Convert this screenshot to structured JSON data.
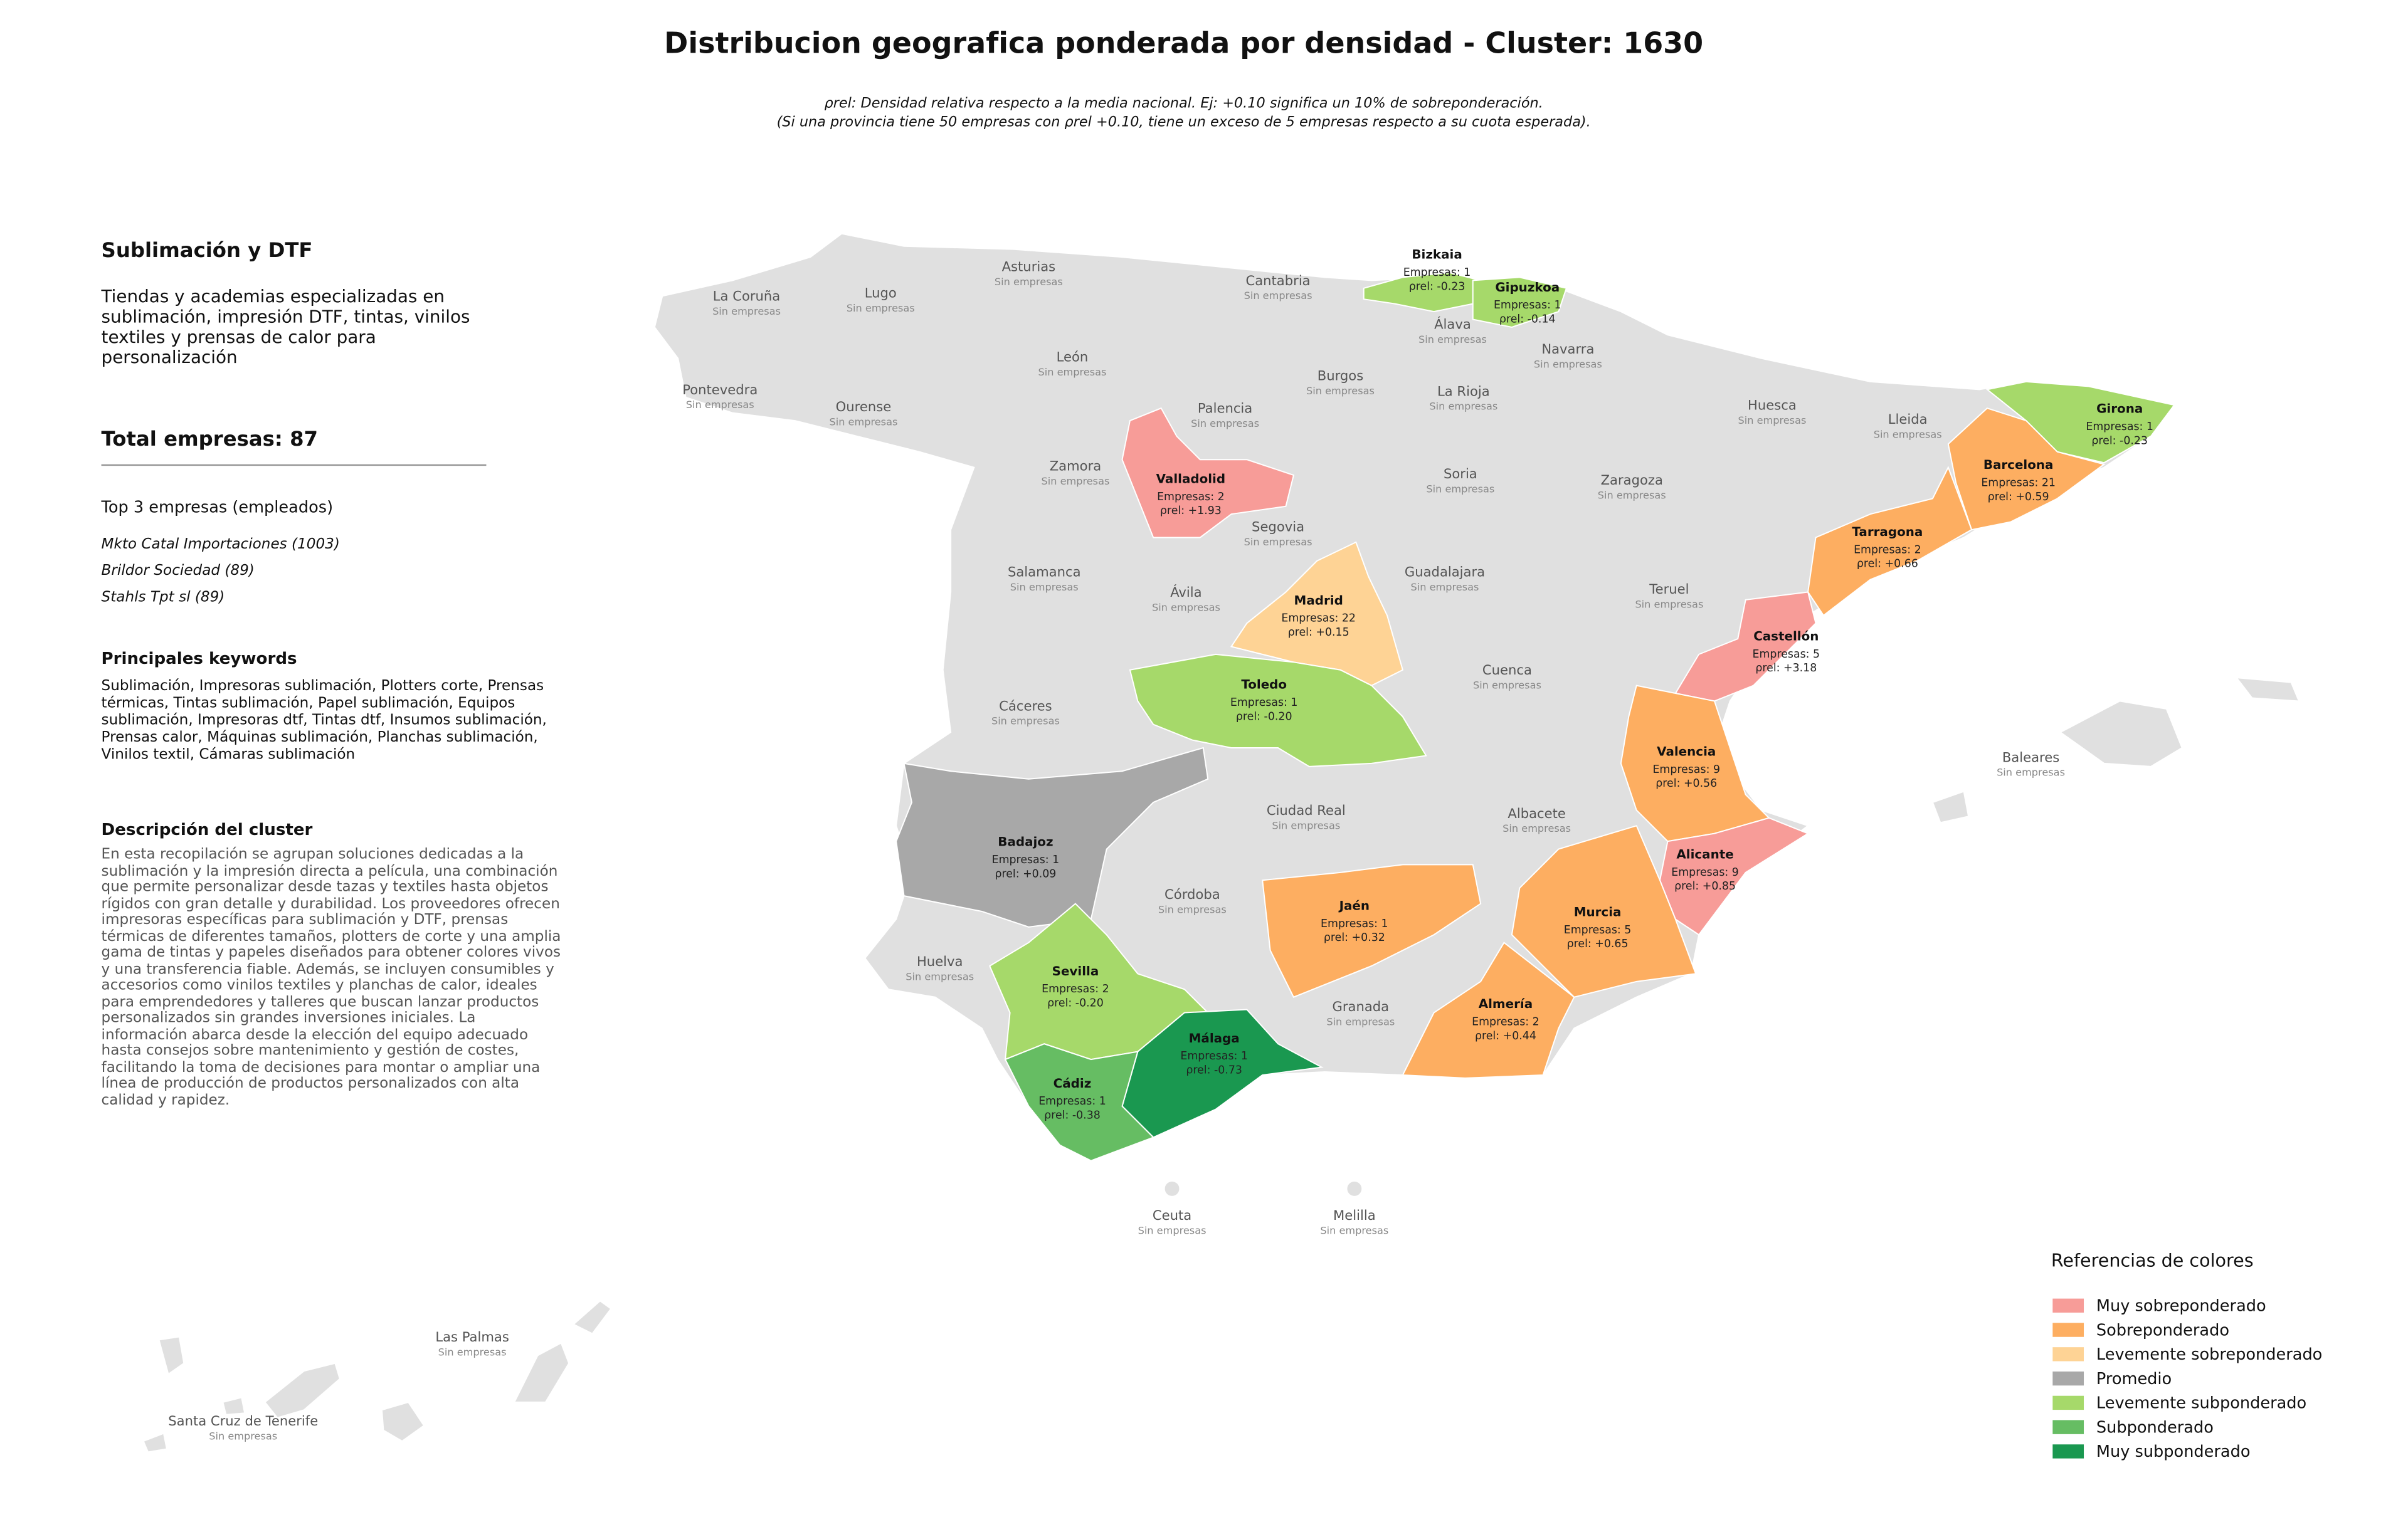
{
  "header": {
    "title": "Distribucion geografica ponderada por densidad - Cluster: 1630",
    "subtitle": [
      "ρrel: Densidad relativa respecto a la media nacional. Ej: +0.10 significa un 10% de sobreponderación.",
      "(Si una provincia tiene 50 empresas con ρrel +0.10, tiene un exceso de 5 empresas respecto a su cuota esperada)."
    ]
  },
  "sidebar": {
    "title": "Sublimación y DTF",
    "description": "Tiendas y academias especializadas en sublimación, impresión DTF, tintas, vinilos textiles y prensas de calor para personalización",
    "total": "Total empresas: 87",
    "top_heading": "Top 3 empresas (empleados)",
    "top_companies": [
      "Mkto Catal Importaciones (1003)",
      "Brildor Sociedad (89)",
      "Stahls Tpt sl (89)"
    ],
    "keywords_heading": "Principales keywords",
    "keywords": "Sublimación, Impresoras sublimación, Plotters corte, Prensas térmicas, Tintas sublimación, Papel sublimación, Equipos sublimación, Impresoras dtf, Tintas dtf, Insumos sublimación, Prensas calor, Máquinas sublimación, Planchas sublimación, Vinilos textil, Cámaras sublimación",
    "cluster_heading": "Descripción del cluster",
    "cluster_text": "En esta recopilación se agrupan soluciones dedicadas a la sublimación y la impresión directa a película, una combinación que permite personalizar desde tazas y textiles hasta objetos rígidos con gran detalle y durabilidad. Los proveedores ofrecen impresoras específicas para sublimación y DTF, prensas térmicas de diferentes tamaños, plotters de corte y una amplia gama de tintas y papeles diseñados para obtener colores vivos y una transferencia fiable. Además, se incluyen consumibles y accesorios como vinilos textiles y planchas de calor, ideales para emprendedores y talleres que buscan lanzar productos personalizados sin grandes inversiones iniciales. La información abarca desde la elección del equipo adecuado hasta consejos sobre mantenimiento y gestión de costes, facilitando la toma de decisiones para montar o ampliar una línea de producción de productos personalizados con alta calidad y rapidez."
  },
  "map": {
    "provinces": [
      {
        "name": "La Coruña",
        "status": "Sin empresas"
      },
      {
        "name": "Lugo",
        "status": "Sin empresas"
      },
      {
        "name": "Asturias",
        "status": "Sin empresas"
      },
      {
        "name": "Cantabria",
        "status": "Sin empresas"
      },
      {
        "name": "Álava",
        "status": "Sin empresas"
      },
      {
        "name": "Navarra",
        "status": "Sin empresas"
      },
      {
        "name": "León",
        "status": "Sin empresas"
      },
      {
        "name": "Burgos",
        "status": "Sin empresas"
      },
      {
        "name": "La Rioja",
        "status": "Sin empresas"
      },
      {
        "name": "Huesca",
        "status": "Sin empresas"
      },
      {
        "name": "Lleida",
        "status": "Sin empresas"
      },
      {
        "name": "Pontevedra",
        "status": "Sin empresas"
      },
      {
        "name": "Ourense",
        "status": "Sin empresas"
      },
      {
        "name": "Palencia",
        "status": "Sin empresas"
      },
      {
        "name": "Zamora",
        "status": "Sin empresas"
      },
      {
        "name": "Soria",
        "status": "Sin empresas"
      },
      {
        "name": "Zaragoza",
        "status": "Sin empresas"
      },
      {
        "name": "Segovia",
        "status": "Sin empresas"
      },
      {
        "name": "Salamanca",
        "status": "Sin empresas"
      },
      {
        "name": "Guadalajara",
        "status": "Sin empresas"
      },
      {
        "name": "Ávila",
        "status": "Sin empresas"
      },
      {
        "name": "Teruel",
        "status": "Sin empresas"
      },
      {
        "name": "Cuenca",
        "status": "Sin empresas"
      },
      {
        "name": "Cáceres",
        "status": "Sin empresas"
      },
      {
        "name": "Ciudad Real",
        "status": "Sin empresas"
      },
      {
        "name": "Albacete",
        "status": "Sin empresas"
      },
      {
        "name": "Córdoba",
        "status": "Sin empresas"
      },
      {
        "name": "Huelva",
        "status": "Sin empresas"
      },
      {
        "name": "Granada",
        "status": "Sin empresas"
      },
      {
        "name": "Baleares",
        "status": "Sin empresas"
      },
      {
        "name": "Ceuta",
        "status": "Sin empresas"
      },
      {
        "name": "Melilla",
        "status": "Sin empresas"
      },
      {
        "name": "Las Palmas",
        "status": "Sin empresas"
      },
      {
        "name": "Santa Cruz de Tenerife",
        "status": "Sin empresas"
      },
      {
        "name": "Bizkaia",
        "empresas": "Empresas: 1",
        "rho": "ρrel: -0.23",
        "color": "#a6d96a"
      },
      {
        "name": "Gipuzkoa",
        "empresas": "Empresas: 1",
        "rho": "ρrel: -0.14",
        "color": "#a6d96a"
      },
      {
        "name": "Girona",
        "empresas": "Empresas: 1",
        "rho": "ρrel: -0.23",
        "color": "#a6d96a"
      },
      {
        "name": "Barcelona",
        "empresas": "Empresas: 21",
        "rho": "ρrel: +0.59",
        "color": "#fdae61"
      },
      {
        "name": "Tarragona",
        "empresas": "Empresas: 2",
        "rho": "ρrel: +0.66",
        "color": "#fdae61"
      },
      {
        "name": "Valladolid",
        "empresas": "Empresas: 2",
        "rho": "ρrel: +1.93",
        "color": "#f79c98"
      },
      {
        "name": "Madrid",
        "empresas": "Empresas: 22",
        "rho": "ρrel: +0.15",
        "color": "#fed395"
      },
      {
        "name": "Castellón",
        "empresas": "Empresas: 5",
        "rho": "ρrel: +3.18",
        "color": "#f79c98"
      },
      {
        "name": "Toledo",
        "empresas": "Empresas: 1",
        "rho": "ρrel: -0.20",
        "color": "#a6d96a"
      },
      {
        "name": "Valencia",
        "empresas": "Empresas: 9",
        "rho": "ρrel: +0.56",
        "color": "#fdae61"
      },
      {
        "name": "Badajoz",
        "empresas": "Empresas: 1",
        "rho": "ρrel: +0.09",
        "color": "#a8a8a8"
      },
      {
        "name": "Alicante",
        "empresas": "Empresas: 9",
        "rho": "ρrel: +0.85",
        "color": "#f79c98"
      },
      {
        "name": "Jaén",
        "empresas": "Empresas: 1",
        "rho": "ρrel: +0.32",
        "color": "#fdae61"
      },
      {
        "name": "Murcia",
        "empresas": "Empresas: 5",
        "rho": "ρrel: +0.65",
        "color": "#fdae61"
      },
      {
        "name": "Sevilla",
        "empresas": "Empresas: 2",
        "rho": "ρrel: -0.20",
        "color": "#a6d96a"
      },
      {
        "name": "Almería",
        "empresas": "Empresas: 2",
        "rho": "ρrel: +0.44",
        "color": "#fdae61"
      },
      {
        "name": "Málaga",
        "empresas": "Empresas: 1",
        "rho": "ρrel: -0.73",
        "color": "#1a9850"
      },
      {
        "name": "Cádiz",
        "empresas": "Empresas: 1",
        "rho": "ρrel: -0.38",
        "color": "#66bd63"
      }
    ]
  },
  "legend": {
    "title": "Referencias de colores",
    "items": [
      {
        "label": "Muy sobreponderado",
        "color": "#f79c98"
      },
      {
        "label": "Sobreponderado",
        "color": "#fdae61"
      },
      {
        "label": "Levemente sobreponderado",
        "color": "#fed395"
      },
      {
        "label": "Promedio",
        "color": "#a8a8a8"
      },
      {
        "label": "Levemente subponderado",
        "color": "#a6d96a"
      },
      {
        "label": "Subponderado",
        "color": "#66bd63"
      },
      {
        "label": "Muy subponderado",
        "color": "#1a9850"
      }
    ]
  }
}
